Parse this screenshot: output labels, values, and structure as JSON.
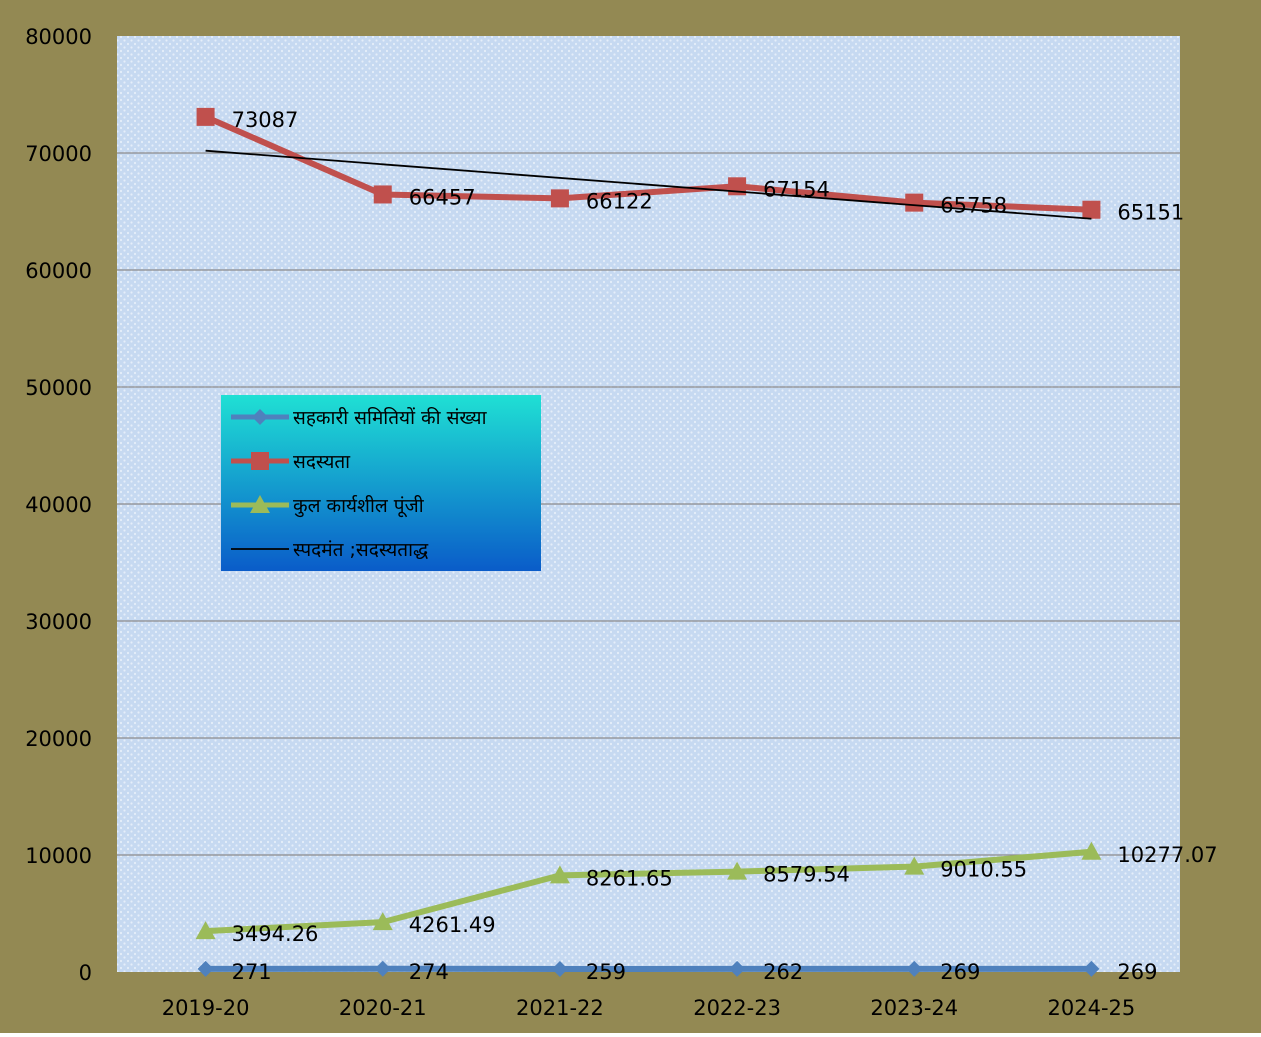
{
  "chart_data": {
    "type": "line",
    "categories": [
      "2019-20",
      "2020-21",
      "2021-22",
      "2022-23",
      "2023-24",
      "2024-25"
    ],
    "ylim": [
      0,
      80000
    ],
    "yticks": [
      0,
      10000,
      20000,
      30000,
      40000,
      50000,
      60000,
      70000,
      80000
    ],
    "ytick_labels": [
      "0",
      "10000",
      "20000",
      "30000",
      "40000",
      "50000",
      "60000",
      "70000",
      "80000"
    ],
    "grid": true,
    "legend_position": "left, middle",
    "colors": {
      "outer_background": "#938953",
      "plot_background": "#c6d9f1",
      "legend_top": "#1fe0d4",
      "legend_bottom": "#0a5cc9"
    },
    "series": [
      {
        "name": "सहकारी समितियों की संख्या",
        "values": [
          271,
          274,
          259,
          262,
          269,
          269
        ],
        "labels": [
          "271",
          "274",
          "259",
          "262",
          "269",
          "269"
        ],
        "color": "#4f81bd",
        "marker": "diamond"
      },
      {
        "name": "सदस्यता",
        "values": [
          73087,
          66457,
          66122,
          67154,
          65758,
          65151
        ],
        "labels": [
          "73087",
          "66457",
          "66122",
          "67154",
          "65758",
          "65151"
        ],
        "color": "#c0504d",
        "marker": "square"
      },
      {
        "name": "कुल कार्यशील पूंजी",
        "values": [
          3494.26,
          4261.49,
          8261.65,
          8579.54,
          9010.55,
          10277.07
        ],
        "labels": [
          "3494.26",
          "4261.49",
          "8261.65",
          "8579.54",
          "9010.55",
          "10277.07"
        ],
        "color": "#9bbb59",
        "marker": "triangle"
      }
    ],
    "trendline": {
      "name": "स्पदमंत ;सदस्यताद्ध",
      "of_series": "सदस्यता",
      "type": "linear",
      "color": "#000000"
    }
  }
}
